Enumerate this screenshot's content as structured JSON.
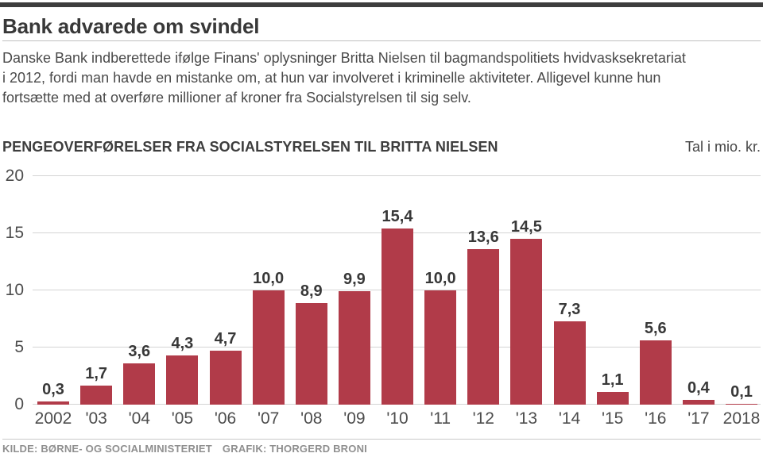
{
  "header": {
    "title": "Bank advarede om svindel",
    "paragraph_lines": [
      "Danske Bank indberettede ifølge Finans' oplysninger Britta Nielsen til bagmandspolitiets hvidvasksekretariat",
      "i 2012, fordi man havde en mistanke om, at hun var involveret i kriminelle aktiviteter. Alligevel kunne hun",
      "fortsætte med at overføre millioner af kroner fra Socialstyrelsen til sig selv."
    ]
  },
  "chart": {
    "title": "PENGEOVERFØRELSER FRA SOCIALSTYRELSEN TIL BRITTA NIELSEN",
    "unit_label": "Tal i mio. kr."
  },
  "chart_data": {
    "type": "bar",
    "title": "PENGEOVERFØRELSER FRA SOCIALSTYRELSEN TIL BRITTA NIELSEN",
    "unit": "Tal i mio. kr.",
    "categories": [
      "2002",
      "'03",
      "'04",
      "'05",
      "'06",
      "'07",
      "'08",
      "'09",
      "'10",
      "'11",
      "'12",
      "'13",
      "'14",
      "'15",
      "'16",
      "'17",
      "2018"
    ],
    "values": [
      0.3,
      1.7,
      3.6,
      4.3,
      4.7,
      10.0,
      8.9,
      9.9,
      15.4,
      10.0,
      13.6,
      14.5,
      7.3,
      1.1,
      5.6,
      0.4,
      0.1
    ],
    "value_labels": [
      "0,3",
      "1,7",
      "3,6",
      "4,3",
      "4,7",
      "10,0",
      "8,9",
      "9,9",
      "15,4",
      "10,0",
      "13,6",
      "14,5",
      "7,3",
      "1,1",
      "5,6",
      "0,4",
      "0,1"
    ],
    "y_ticks": [
      0,
      5,
      10,
      15,
      20
    ],
    "ylim": [
      0,
      20
    ],
    "xlabel": "",
    "ylabel": "",
    "grid": true,
    "legend": "none",
    "bar_color": "#b13b49",
    "gridline_color": "#d4d4d4"
  },
  "footer": {
    "source": "KILDE: BØRNE- OG SOCIALMINISTERIET",
    "credit": "GRAFIK: THORGERD BRONI"
  },
  "colors": {
    "accent_bar": "#3d3d3d",
    "bar_red": "#b13b49",
    "footer_text": "#8f8f8f"
  }
}
